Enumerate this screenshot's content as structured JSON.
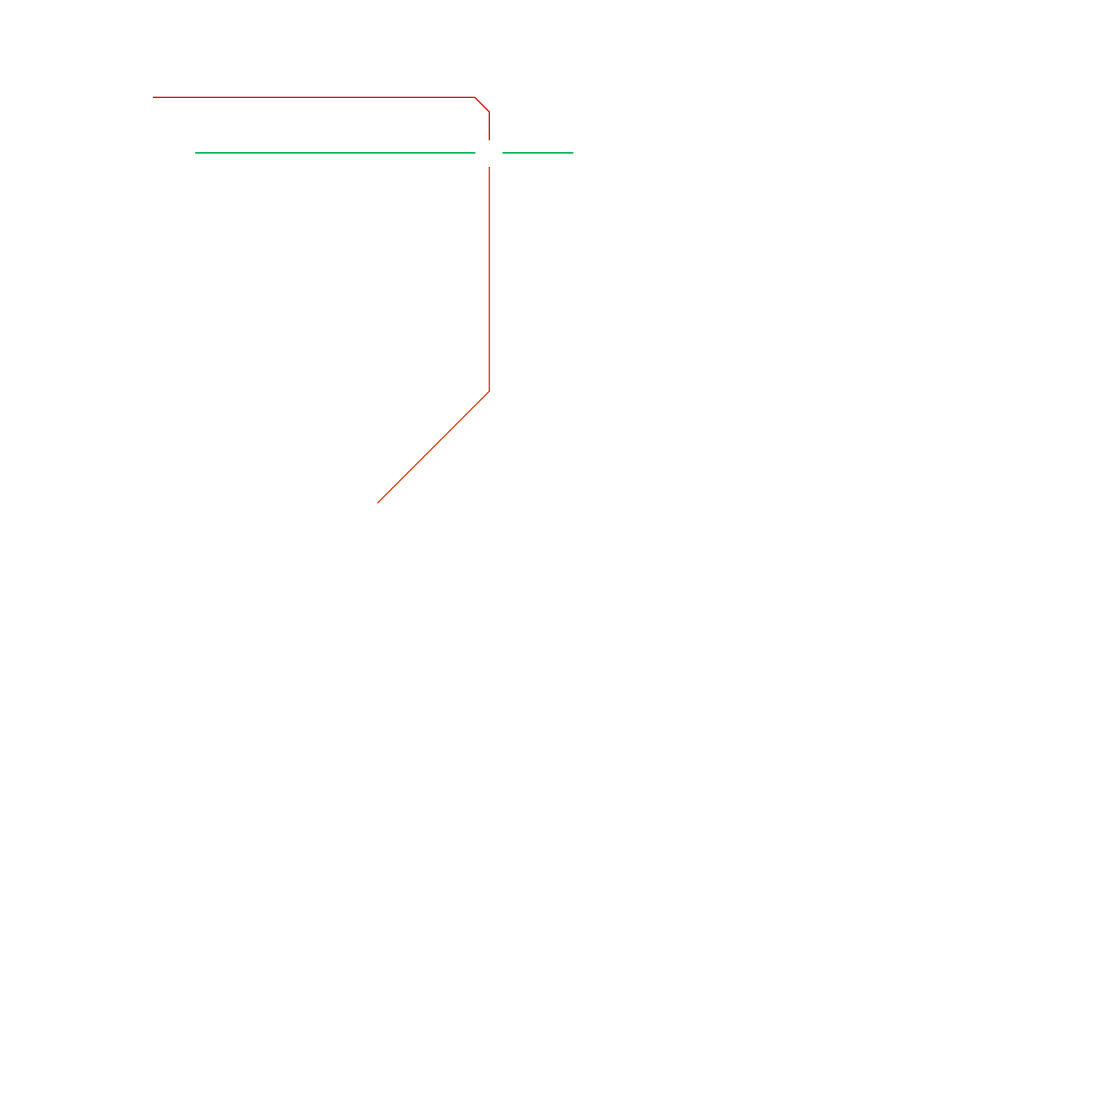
{
  "lines": [
    {
      "color": "#e8191c"
    },
    {
      "color": "#00b050"
    },
    {
      "color": "#e8491c"
    }
  ]
}
